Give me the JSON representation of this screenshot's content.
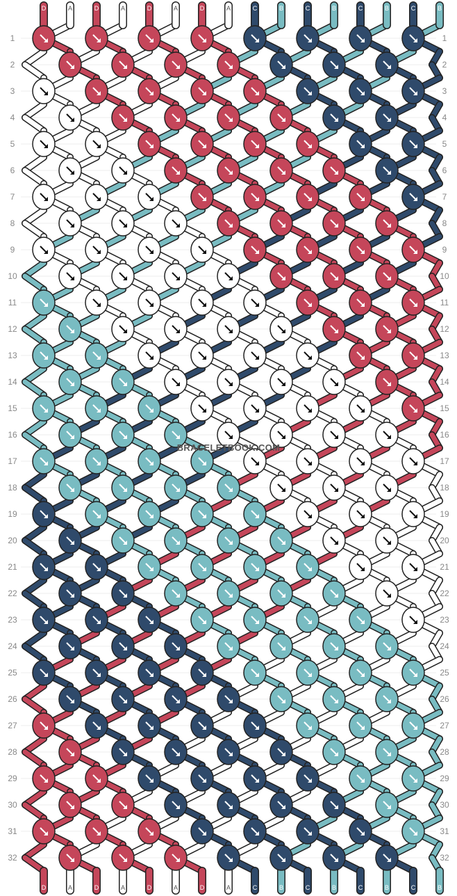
{
  "watermark": "BRACELETBOOK.COM",
  "colors": {
    "D": "#c5465a",
    "A": "#ffffff",
    "C": "#2f4a6b",
    "B": "#79bcc2"
  },
  "strands": [
    "D",
    "A",
    "D",
    "A",
    "D",
    "A",
    "D",
    "A",
    "C",
    "B",
    "C",
    "B",
    "C",
    "B",
    "C",
    "B"
  ],
  "row_numbers": [
    "1",
    "2",
    "3",
    "4",
    "5",
    "6",
    "7",
    "8",
    "9",
    "10",
    "11",
    "12",
    "13",
    "14",
    "15",
    "16",
    "17",
    "18",
    "19",
    "20",
    "21",
    "22",
    "23",
    "24",
    "25",
    "26",
    "27",
    "28",
    "29",
    "30",
    "31",
    "32"
  ]
}
